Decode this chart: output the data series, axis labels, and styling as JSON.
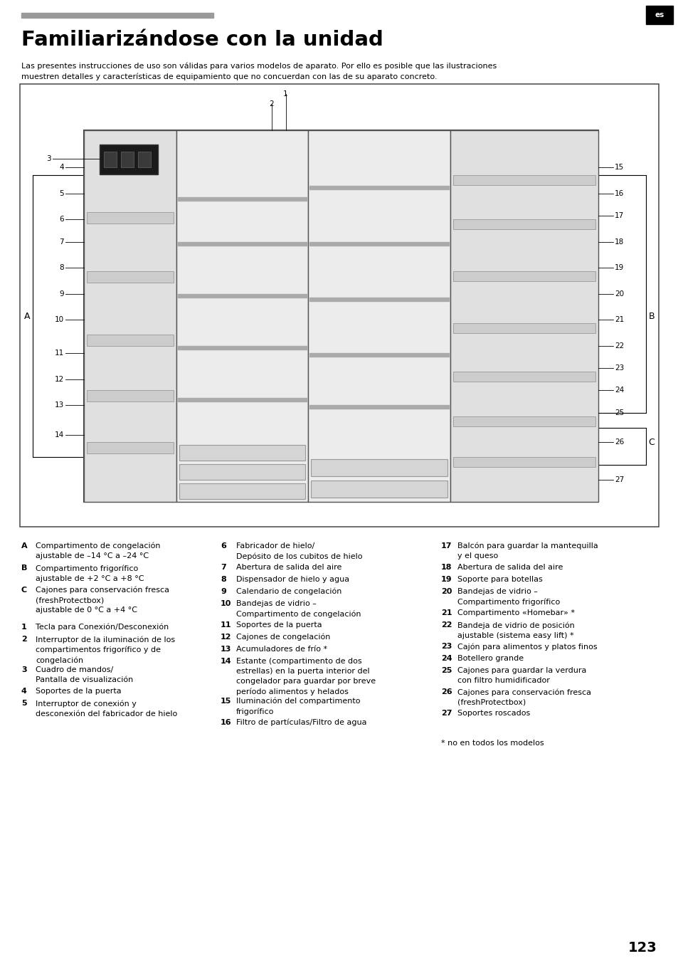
{
  "title": "Familiarizándose con la unidad",
  "subtitle": "Las presentes instrucciones de uso son válidas para varios modelos de aparato. Por ello es posible que las ilustraciones\nmuestren detalles y características de equipamiento que no concuerdan con las de su aparato concreto.",
  "page_number": "123",
  "lang_tag": "es",
  "gray_bar_color": "#999999",
  "text_color": "#000000",
  "col1_abc": [
    [
      "A",
      "Compartimento de congelación\najustable de –14 °C a –24 °C"
    ],
    [
      "B",
      "Compartimento frigorífico\najustable de +2 °C a +8 °C"
    ],
    [
      "C",
      "Cajones para conservación fresca\n(freshProtectbox)\najustable de 0 °C a +4 °C"
    ]
  ],
  "col1_nums": [
    [
      "1",
      "Tecla para Conexión/Desconexión"
    ],
    [
      "2",
      "Interruptor de la iluminación de los\ncompartimentos frigorífico y de\ncongelación"
    ],
    [
      "3",
      "Cuadro de mandos/\nPantalla de visualización"
    ],
    [
      "4",
      "Soportes de la puerta"
    ],
    [
      "5",
      "Interruptor de conexión y\ndesconexión del fabricador de hielo"
    ]
  ],
  "col2_nums": [
    [
      "6",
      "Fabricador de hielo/\nDepósito de los cubitos de hielo"
    ],
    [
      "7",
      "Abertura de salida del aire"
    ],
    [
      "8",
      "Dispensador de hielo y agua"
    ],
    [
      "9",
      "Calendario de congelación"
    ],
    [
      "10",
      "Bandejas de vidrio –\nCompartimento de congelación"
    ],
    [
      "11",
      "Soportes de la puerta"
    ],
    [
      "12",
      "Cajones de congelación"
    ],
    [
      "13",
      "Acumuladores de frío *"
    ],
    [
      "14",
      "Estante (compartimento de dos\nestrellas) en la puerta interior del\ncongelador para guardar por breve\nperíodo alimentos y helados"
    ],
    [
      "15",
      "Iluminación del compartimento\nfrigorífico"
    ],
    [
      "16",
      "Filtro de partículas/Filtro de agua"
    ]
  ],
  "col3_nums": [
    [
      "17",
      "Balcón para guardar la mantequilla\ny el queso"
    ],
    [
      "18",
      "Abertura de salida del aire"
    ],
    [
      "19",
      "Soporte para botellas"
    ],
    [
      "20",
      "Bandejas de vidrio –\nCompartimento frigorífico"
    ],
    [
      "21",
      "Compartimento «Homebar» *"
    ],
    [
      "22",
      "Bandeja de vidrio de posición\najustable (sistema easy lift) *"
    ],
    [
      "23",
      "Cajón para alimentos y platos finos"
    ],
    [
      "24",
      "Botellero grande"
    ],
    [
      "25",
      "Cajones para guardar la verdura\ncon filtro humidificador"
    ],
    [
      "26",
      "Cajones para conservación fresca\n(freshProtectbox)"
    ],
    [
      "27",
      "Soportes roscados"
    ]
  ],
  "footnote": "* no en todos los modelos"
}
